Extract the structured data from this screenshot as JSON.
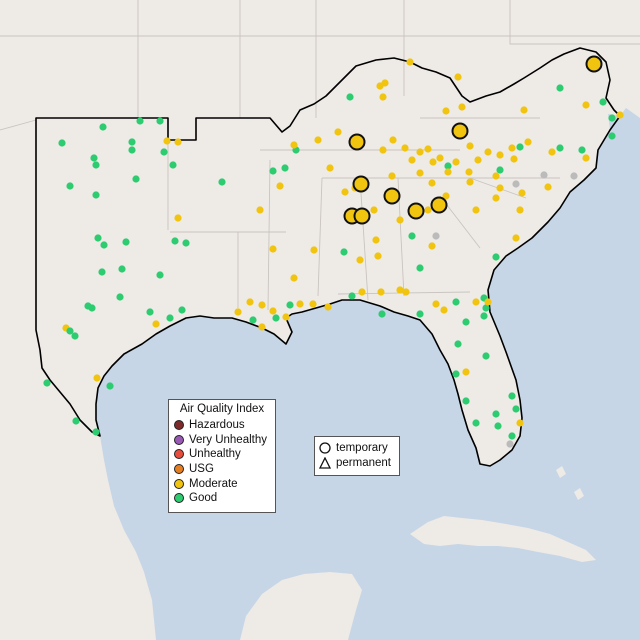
{
  "legend": {
    "title": "Air Quality Index",
    "categories": [
      {
        "label": "Hazardous",
        "color": "#7e2a2a"
      },
      {
        "label": "Very Unhealthy",
        "color": "#9b59b6"
      },
      {
        "label": "Unhealthy",
        "color": "#e74c3c"
      },
      {
        "label": "USG",
        "color": "#e67e22"
      },
      {
        "label": "Moderate",
        "color": "#f1c40f"
      },
      {
        "label": "Good",
        "color": "#2ecc71"
      }
    ]
  },
  "shape_legend": {
    "temporary": "temporary",
    "permanent": "permanent"
  },
  "colors": {
    "water": "#c6d6e6",
    "land": "#eeeae6",
    "no_data": "#bbbbbb"
  },
  "map": {
    "region": "southeastern-us",
    "projection": "equirectangular",
    "lon_range": [
      -107.5,
      -74.5
    ],
    "lat_range": [
      21.5,
      37.8
    ]
  }
}
